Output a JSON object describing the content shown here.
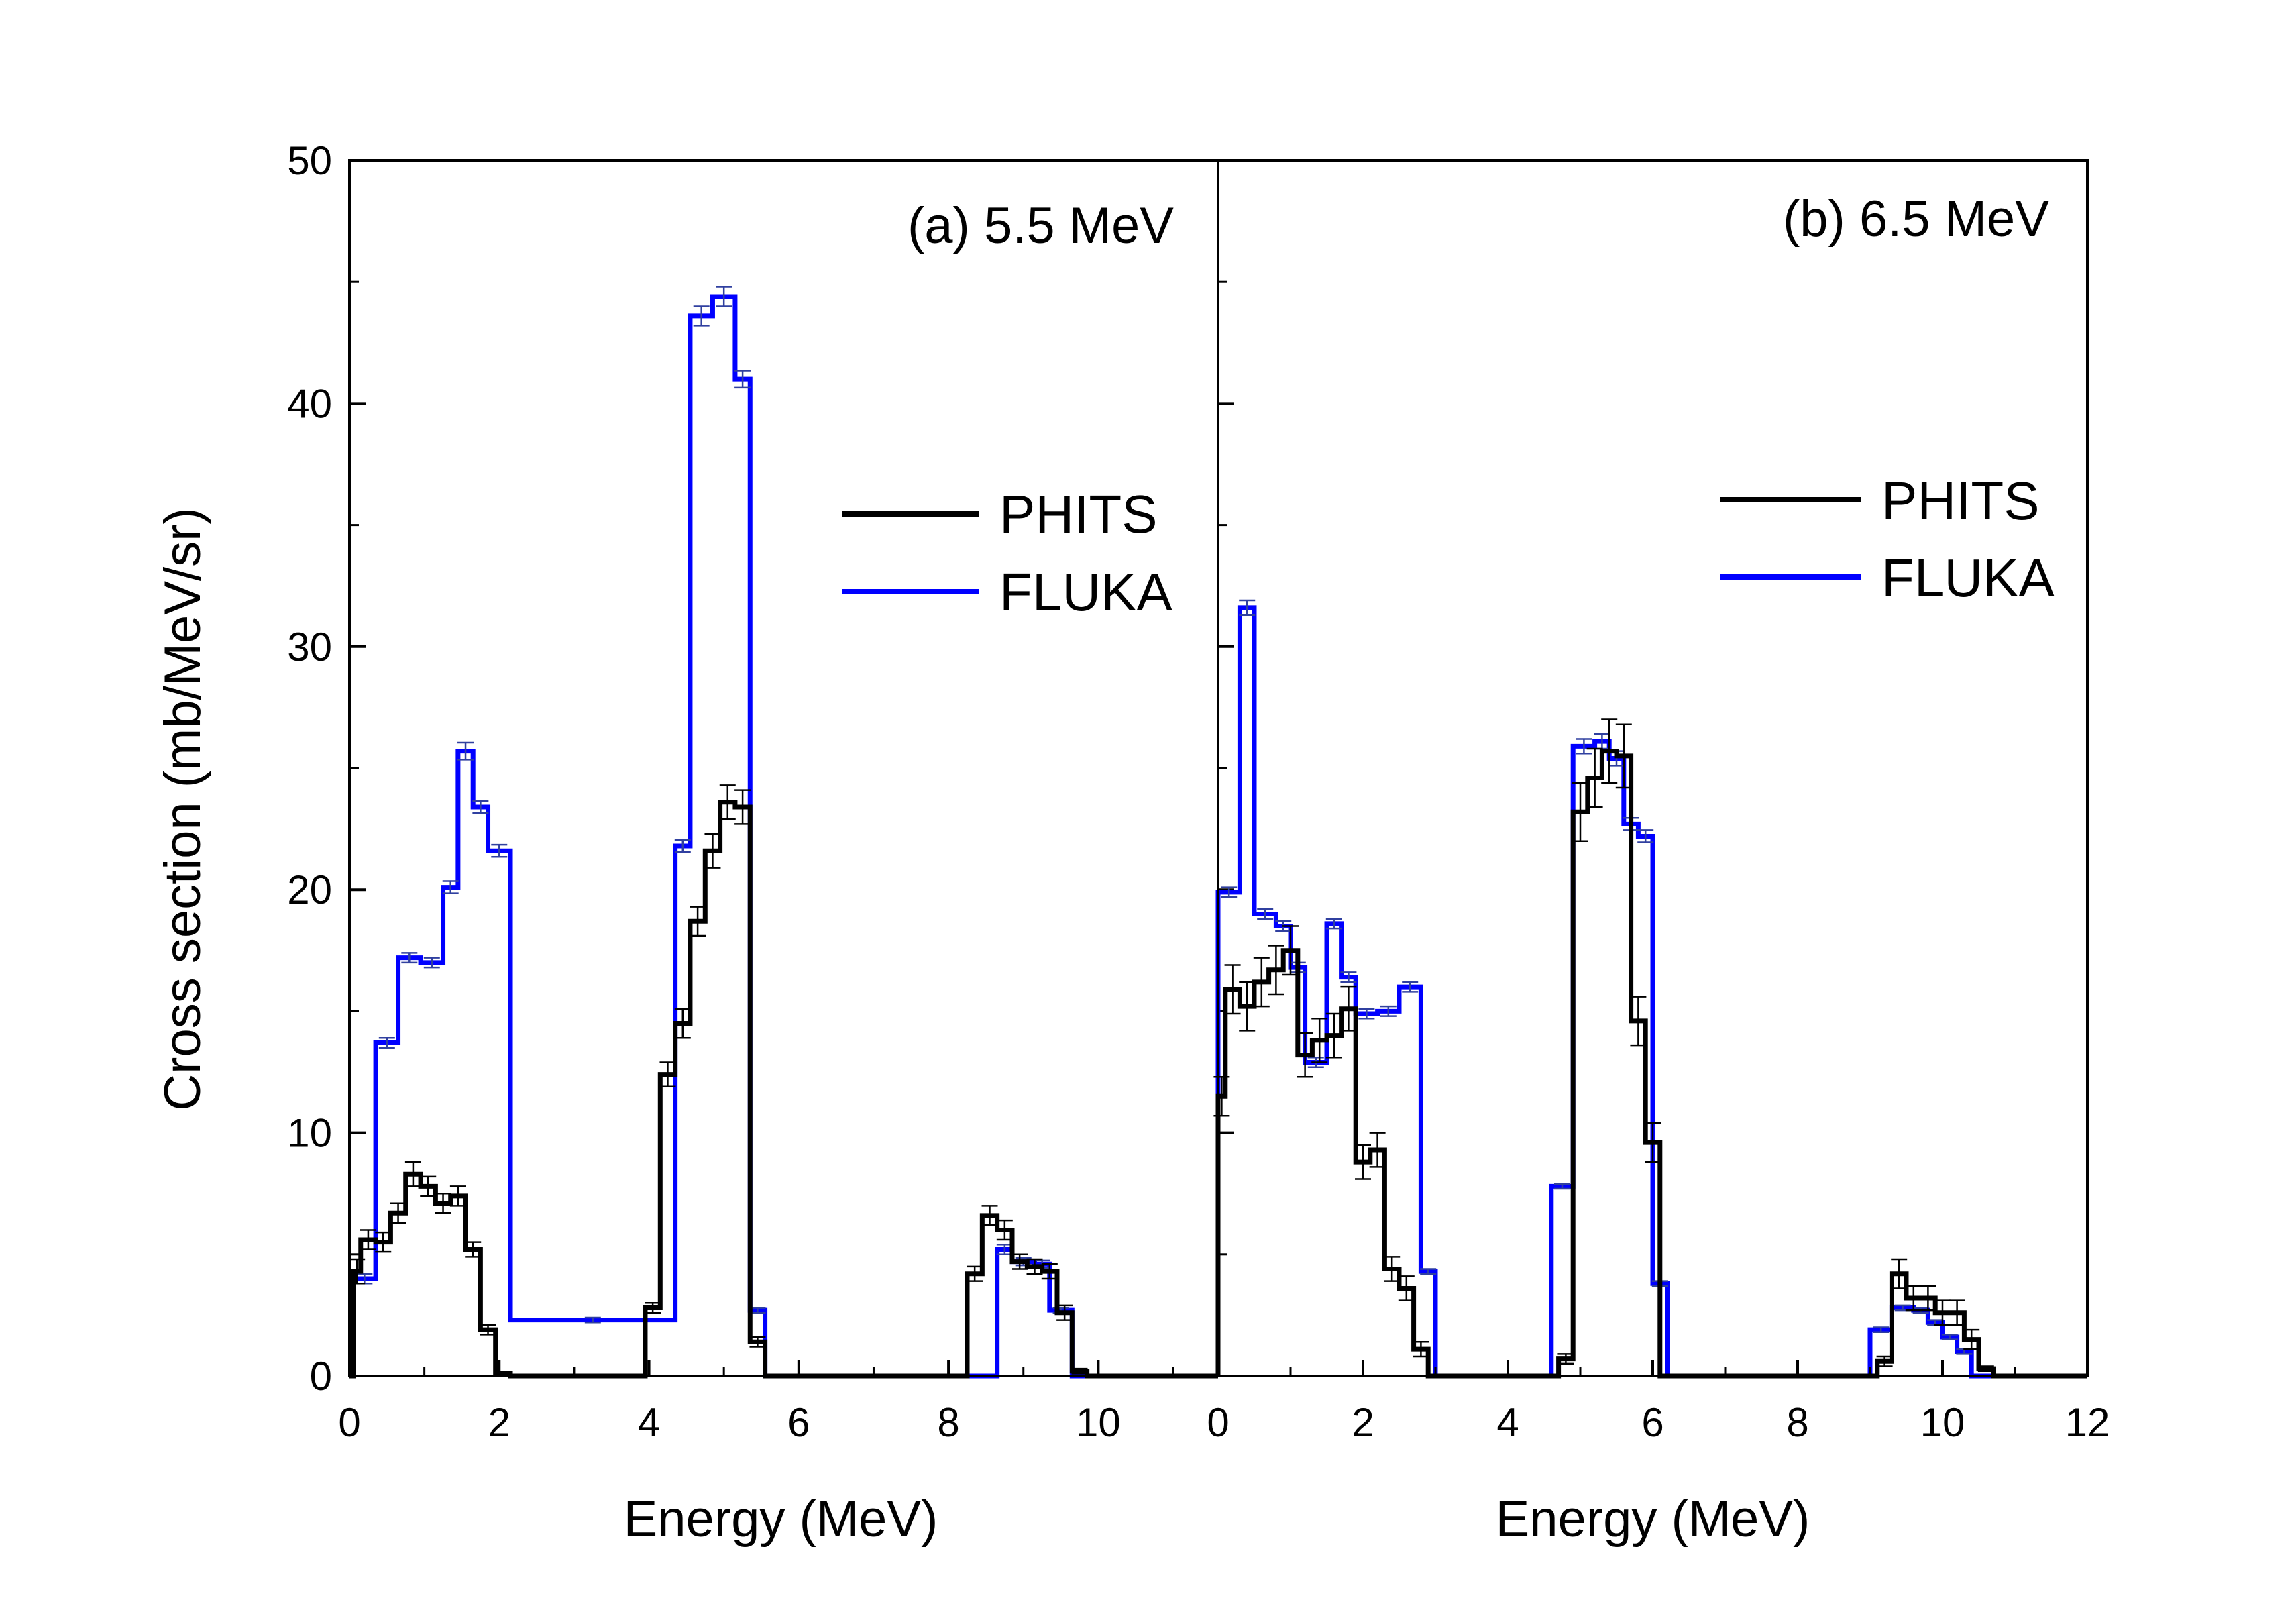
{
  "figure": {
    "ylabel": "Cross section (mb/MeV/sr)",
    "ylim": [
      0,
      50
    ],
    "yticks": [
      0,
      10,
      20,
      30,
      40,
      50
    ]
  },
  "colors": {
    "PHITS": "#000000",
    "FLUKA": "#0000ff"
  },
  "chart_data": [
    {
      "type": "line",
      "step": "histogram",
      "title": "(a) 5.5 MeV",
      "xlabel": "Energy (MeV)",
      "ylabel": "Cross section (mb/MeV/sr)",
      "xlim": [
        0,
        12
      ],
      "ylim": [
        0,
        50
      ],
      "xticks": [
        0,
        2,
        4,
        6,
        8,
        10
      ],
      "legend_position": "right-middle",
      "series": [
        {
          "name": "PHITS",
          "edges": [
            0.05,
            0.15,
            0.35,
            0.55,
            0.75,
            0.95,
            1.15,
            1.35,
            1.55,
            1.75,
            1.95,
            2.15,
            3.95,
            4.15,
            4.35,
            4.55,
            4.75,
            4.95,
            5.15,
            5.35,
            5.55,
            8.25,
            8.45,
            8.65,
            8.85,
            9.05,
            9.25,
            9.45,
            9.65,
            9.85
          ],
          "values": [
            4.3,
            5.6,
            5.5,
            6.7,
            8.3,
            7.8,
            7.1,
            7.4,
            5.2,
            1.9,
            0.1,
            0.0,
            2.8,
            12.4,
            14.5,
            18.7,
            21.6,
            23.6,
            23.4,
            1.4,
            0.0,
            4.2,
            6.6,
            6.0,
            4.7,
            4.5,
            4.3,
            2.6,
            0.2
          ],
          "errors": [
            0.5,
            0.4,
            0.4,
            0.4,
            0.5,
            0.4,
            0.4,
            0.4,
            0.3,
            0.2,
            0.05,
            0.05,
            0.2,
            0.5,
            0.6,
            0.6,
            0.7,
            0.7,
            0.7,
            0.2,
            0.05,
            0.3,
            0.4,
            0.4,
            0.3,
            0.3,
            0.3,
            0.3,
            0.1
          ]
        },
        {
          "name": "FLUKA",
          "edges": [
            0.05,
            0.35,
            0.65,
            0.95,
            1.25,
            1.45,
            1.65,
            1.85,
            2.15,
            4.35,
            4.55,
            4.85,
            5.15,
            5.35,
            5.55,
            8.65,
            8.85,
            9.15,
            9.35,
            9.65,
            9.85
          ],
          "values": [
            4.0,
            13.7,
            17.2,
            17.0,
            20.1,
            25.7,
            23.4,
            21.6,
            2.3,
            21.8,
            43.6,
            44.4,
            41.0,
            2.7,
            0.0,
            5.2,
            4.7,
            4.6,
            2.7,
            0.0
          ],
          "errors": [
            0.2,
            0.2,
            0.2,
            0.2,
            0.25,
            0.35,
            0.25,
            0.25,
            0.1,
            0.25,
            0.4,
            0.4,
            0.35,
            0.1,
            0.0,
            0.2,
            0.15,
            0.15,
            0.1,
            0.0
          ]
        }
      ],
      "legend": [
        "PHITS",
        "FLUKA"
      ]
    },
    {
      "type": "line",
      "step": "histogram",
      "title": "(b) 6.5 MeV",
      "xlabel": "Energy (MeV)",
      "ylabel": "Cross section (mb/MeV/sr)",
      "xlim": [
        0,
        12
      ],
      "ylim": [
        0,
        50
      ],
      "xticks": [
        0,
        2,
        4,
        6,
        8,
        10,
        12
      ],
      "legend_position": "right-middle",
      "series": [
        {
          "name": "PHITS",
          "edges": [
            0.0,
            0.1,
            0.3,
            0.5,
            0.7,
            0.9,
            1.1,
            1.3,
            1.5,
            1.7,
            1.9,
            2.1,
            2.3,
            2.5,
            2.7,
            2.9,
            4.7,
            4.9,
            5.1,
            5.3,
            5.5,
            5.7,
            5.9,
            6.1,
            6.3,
            9.1,
            9.3,
            9.5,
            9.7,
            9.9,
            10.1,
            10.3,
            10.5,
            10.7
          ],
          "values": [
            11.5,
            15.9,
            15.2,
            16.2,
            16.7,
            17.5,
            13.2,
            13.8,
            14.0,
            15.1,
            8.8,
            9.3,
            4.4,
            3.6,
            1.1,
            0.0,
            0.7,
            23.2,
            24.6,
            25.7,
            25.5,
            14.6,
            9.6,
            0.0,
            0.0,
            0.6,
            4.2,
            3.2,
            3.2,
            2.6,
            2.6,
            1.5,
            0.3
          ],
          "errors": [
            0.8,
            1.0,
            1.0,
            1.0,
            1.0,
            1.0,
            0.9,
            0.9,
            0.9,
            0.9,
            0.7,
            0.7,
            0.5,
            0.5,
            0.3,
            0.05,
            0.2,
            1.2,
            1.2,
            1.3,
            1.3,
            1.0,
            0.8,
            0.05,
            0.05,
            0.2,
            0.6,
            0.5,
            0.5,
            0.5,
            0.5,
            0.4,
            0.1
          ]
        },
        {
          "name": "FLUKA",
          "edges": [
            0.0,
            0.3,
            0.5,
            0.8,
            1.0,
            1.2,
            1.5,
            1.7,
            1.9,
            2.2,
            2.5,
            2.8,
            3.0,
            4.6,
            4.9,
            5.2,
            5.4,
            5.6,
            5.8,
            6.0,
            6.2,
            9.0,
            9.3,
            9.6,
            9.8,
            10.0,
            10.2,
            10.4,
            10.6
          ],
          "values": [
            19.9,
            31.6,
            19.0,
            18.5,
            16.8,
            12.9,
            18.6,
            16.4,
            14.9,
            15.0,
            16.0,
            4.3,
            0.0,
            7.8,
            25.9,
            26.1,
            25.4,
            22.7,
            22.2,
            3.8,
            0.0,
            1.9,
            2.8,
            2.7,
            2.2,
            1.6,
            1.0,
            0.0
          ],
          "errors": [
            0.2,
            0.3,
            0.2,
            0.2,
            0.2,
            0.2,
            0.2,
            0.2,
            0.2,
            0.2,
            0.2,
            0.1,
            0.0,
            0.1,
            0.3,
            0.3,
            0.3,
            0.25,
            0.25,
            0.1,
            0.0,
            0.1,
            0.1,
            0.1,
            0.1,
            0.1,
            0.1,
            0.0
          ]
        }
      ],
      "legend": [
        "PHITS",
        "FLUKA"
      ]
    }
  ]
}
